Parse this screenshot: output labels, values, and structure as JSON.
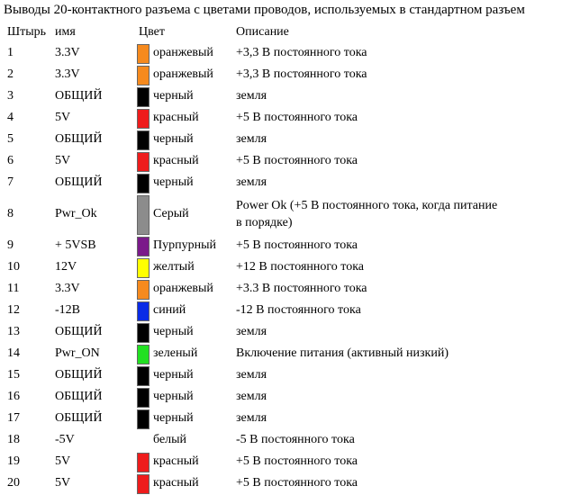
{
  "title": "Выводы 20-контактного разъема с цветами проводов, используемых в стандартном разъем",
  "headers": {
    "pin": "Штырь",
    "name": "имя",
    "color": "Цвет",
    "description": "Описание"
  },
  "rows": [
    {
      "pin": "1",
      "name": "3.3V",
      "color_name": "оранжевый",
      "color_hex": "#f68a1e",
      "description": "+3,3 В постоянного тока"
    },
    {
      "pin": "2",
      "name": "3.3V",
      "color_name": "оранжевый",
      "color_hex": "#f68a1e",
      "description": "+3,3 В постоянного тока"
    },
    {
      "pin": "3",
      "name": "ОБЩИЙ",
      "color_name": "черный",
      "color_hex": "#000000",
      "description": "земля"
    },
    {
      "pin": "4",
      "name": "5V",
      "color_name": "красный",
      "color_hex": "#ee1c1c",
      "description": "+5 В постоянного тока"
    },
    {
      "pin": "5",
      "name": "ОБЩИЙ",
      "color_name": "черный",
      "color_hex": "#000000",
      "description": "земля"
    },
    {
      "pin": "6",
      "name": "5V",
      "color_name": "красный",
      "color_hex": "#ee1c1c",
      "description": "+5 В постоянного тока"
    },
    {
      "pin": "7",
      "name": "ОБЩИЙ",
      "color_name": "черный",
      "color_hex": "#000000",
      "description": "земля"
    },
    {
      "pin": "8",
      "name": "Pwr_Ok",
      "color_name": "Серый",
      "color_hex": "#8c8c8c",
      "description": "Power Ok (+5 В постоянного тока, когда питание в порядке)"
    },
    {
      "pin": "9",
      "name": "+ 5VSB",
      "color_name": "Пурпурный",
      "color_hex": "#7b1a8a",
      "description": "+5 В постоянного тока"
    },
    {
      "pin": "10",
      "name": "12V",
      "color_name": "желтый",
      "color_hex": "#ffff00",
      "description": "+12 В постоянного тока"
    },
    {
      "pin": "11",
      "name": "3.3V",
      "color_name": "оранжевый",
      "color_hex": "#f68a1e",
      "description": "+3.3 В постоянного тока"
    },
    {
      "pin": "12",
      "name": "-12В",
      "color_name": "синий",
      "color_hex": "#0a2be6",
      "description": "-12 В постоянного тока"
    },
    {
      "pin": "13",
      "name": "ОБЩИЙ",
      "color_name": "черный",
      "color_hex": "#000000",
      "description": "земля"
    },
    {
      "pin": "14",
      "name": "Pwr_ON",
      "color_name": "зеленый",
      "color_hex": "#22e022",
      "description": "Включение питания (активный низкий)"
    },
    {
      "pin": "15",
      "name": "ОБЩИЙ",
      "color_name": "черный",
      "color_hex": "#000000",
      "description": "земля"
    },
    {
      "pin": "16",
      "name": "ОБЩИЙ",
      "color_name": "черный",
      "color_hex": "#000000",
      "description": "земля"
    },
    {
      "pin": "17",
      "name": "ОБЩИЙ",
      "color_name": "черный",
      "color_hex": "#000000",
      "description": "земля"
    },
    {
      "pin": "18",
      "name": "-5V",
      "color_name": "белый",
      "color_hex": "#ffffff",
      "description": "-5 В постоянного тока"
    },
    {
      "pin": "19",
      "name": "5V",
      "color_name": "красный",
      "color_hex": "#ee1c1c",
      "description": "+5 В постоянного тока"
    },
    {
      "pin": "20",
      "name": "5V",
      "color_name": "красный",
      "color_hex": "#ee1c1c",
      "description": "+5 В постоянного тока"
    }
  ]
}
